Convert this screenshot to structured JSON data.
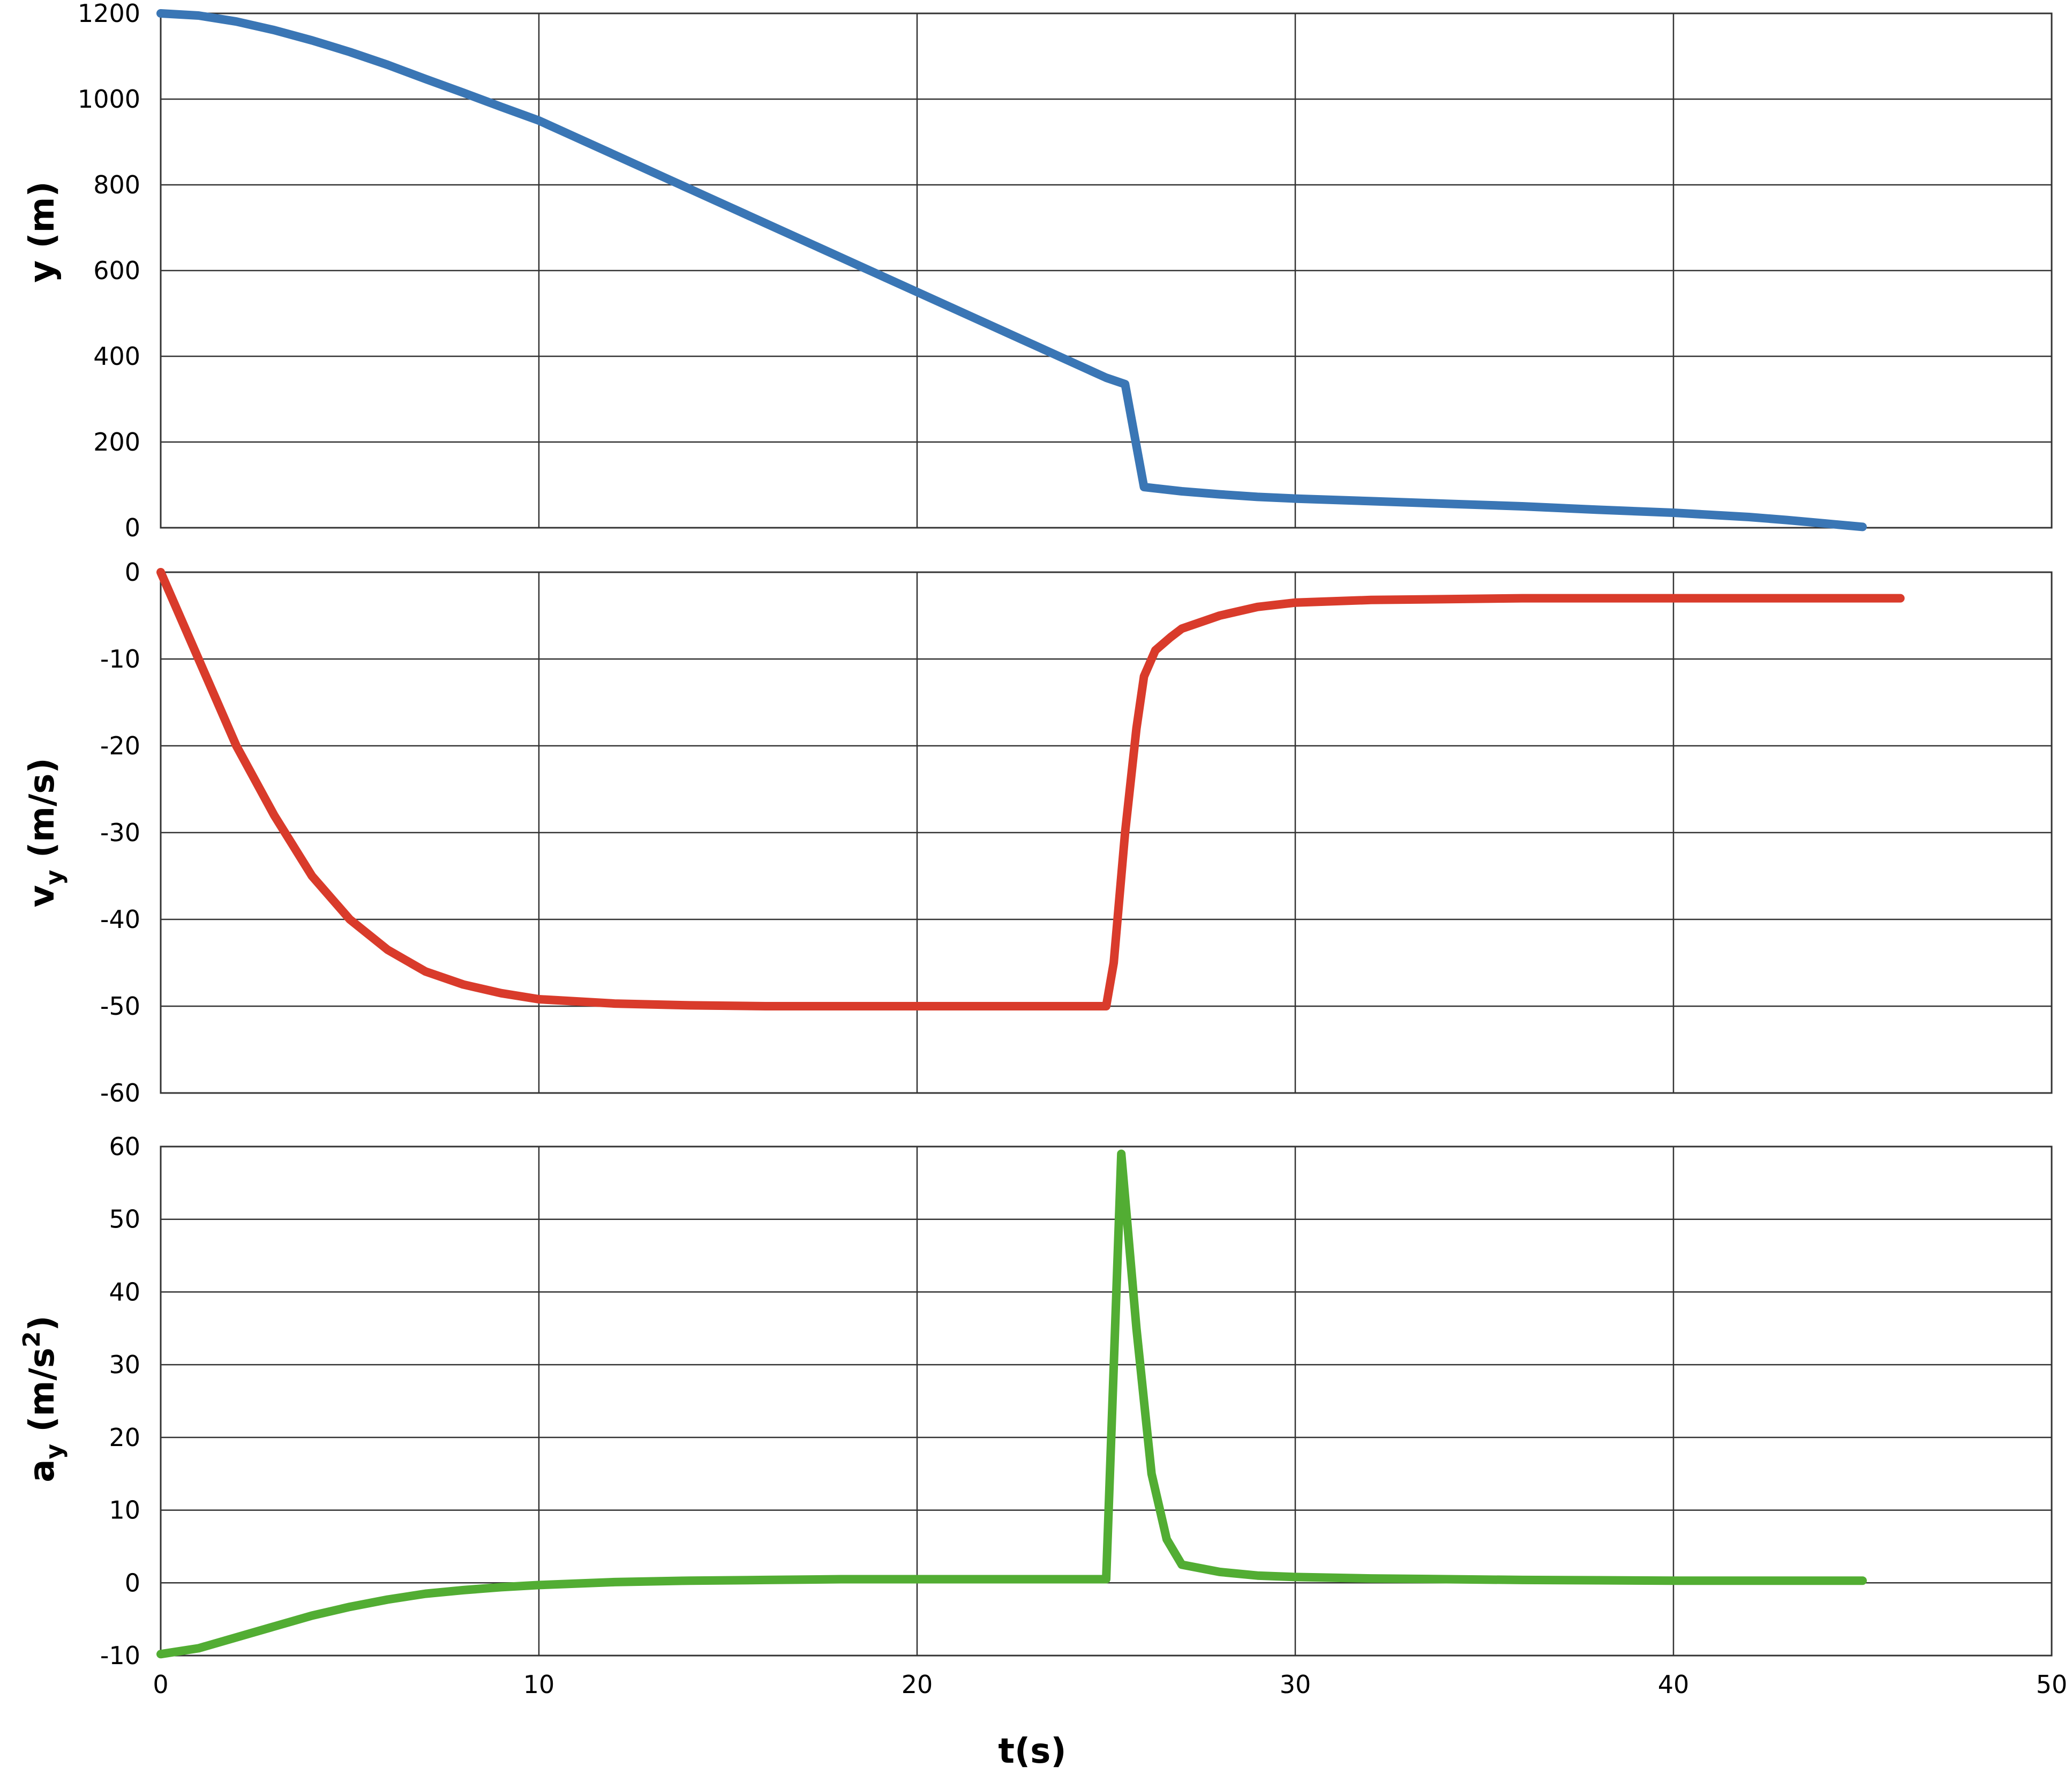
{
  "chart_data": [
    {
      "type": "line",
      "title": "",
      "xlabel": "",
      "ylabel": "y (m)",
      "xlim": [
        0,
        50
      ],
      "ylim": [
        0,
        1200
      ],
      "xticks": [
        0,
        10,
        20,
        30,
        40,
        50
      ],
      "yticks": [
        0,
        200,
        400,
        600,
        800,
        1000,
        1200
      ],
      "ytick_labels": [
        "0",
        "200",
        "400",
        "600",
        "800",
        "1000",
        "1200"
      ],
      "grid": true,
      "color": "#3a76b5",
      "series": [
        {
          "x": [
            0,
            1,
            2,
            3,
            4,
            5,
            6,
            7,
            8,
            9,
            10,
            11,
            12,
            13,
            14,
            15,
            16,
            17,
            18,
            19,
            20,
            21,
            22,
            23,
            24,
            25,
            25.5,
            26,
            27,
            28,
            29,
            30,
            32,
            34,
            36,
            38,
            40,
            42,
            43,
            44,
            45
          ],
          "y": [
            1200,
            1195,
            1181,
            1161,
            1137,
            1110,
            1080,
            1047,
            1015,
            982,
            950,
            910,
            870,
            830,
            790,
            750,
            710,
            670,
            630,
            590,
            550,
            510,
            470,
            430,
            390,
            350,
            335,
            95,
            85,
            78,
            72,
            68,
            62,
            56,
            50,
            42,
            35,
            25,
            18,
            10,
            2
          ]
        }
      ]
    },
    {
      "type": "line",
      "title": "",
      "xlabel": "",
      "ylabel": "v_y (m/s)",
      "xlim": [
        0,
        50
      ],
      "ylim": [
        -60,
        0
      ],
      "xticks": [
        0,
        10,
        20,
        30,
        40,
        50
      ],
      "yticks": [
        -60,
        -50,
        -40,
        -30,
        -20,
        -10,
        0
      ],
      "ytick_labels": [
        "-60",
        "-50",
        "-40",
        "-30",
        "-20",
        "-10",
        "0"
      ],
      "grid": true,
      "color": "#d93b2b",
      "series": [
        {
          "x": [
            0,
            1,
            2,
            3,
            4,
            5,
            6,
            7,
            8,
            9,
            10,
            12,
            14,
            16,
            18,
            20,
            22,
            24,
            25,
            25.2,
            25.5,
            25.8,
            26,
            26.3,
            26.7,
            27,
            28,
            29,
            30,
            32,
            34,
            36,
            38,
            40,
            42,
            44,
            46
          ],
          "y": [
            0,
            -10,
            -20,
            -28,
            -35,
            -40,
            -43.5,
            -46,
            -47.5,
            -48.5,
            -49.2,
            -49.7,
            -49.9,
            -50,
            -50,
            -50,
            -50,
            -50,
            -50,
            -45,
            -30,
            -18,
            -12,
            -9,
            -7.5,
            -6.5,
            -5,
            -4,
            -3.5,
            -3.2,
            -3.1,
            -3,
            -3,
            -3,
            -3,
            -3,
            -3
          ]
        }
      ]
    },
    {
      "type": "line",
      "title": "",
      "xlabel": "t(s)",
      "ylabel": "a_y (m/s^2)",
      "xlim": [
        0,
        50
      ],
      "ylim": [
        -10,
        60
      ],
      "xticks": [
        0,
        10,
        20,
        30,
        40,
        50
      ],
      "xtick_labels": [
        "0",
        "10",
        "20",
        "30",
        "40",
        "50"
      ],
      "yticks": [
        -10,
        0,
        10,
        20,
        30,
        40,
        50,
        60
      ],
      "ytick_labels": [
        "-10",
        "0",
        "10",
        "20",
        "30",
        "40",
        "50",
        "60"
      ],
      "grid": true,
      "color": "#52ad33",
      "series": [
        {
          "x": [
            0,
            1,
            2,
            3,
            4,
            5,
            6,
            7,
            8,
            9,
            10,
            12,
            14,
            16,
            18,
            20,
            22,
            24,
            25,
            25.4,
            25.8,
            26.2,
            26.6,
            27,
            28,
            29,
            30,
            32,
            34,
            36,
            38,
            40,
            42,
            44,
            45
          ],
          "y": [
            -9.8,
            -9,
            -7.5,
            -6,
            -4.5,
            -3.3,
            -2.3,
            -1.5,
            -1,
            -0.6,
            -0.3,
            0.1,
            0.3,
            0.4,
            0.5,
            0.5,
            0.5,
            0.5,
            0.5,
            59,
            35,
            15,
            6,
            2.5,
            1.5,
            1,
            0.8,
            0.6,
            0.5,
            0.4,
            0.35,
            0.3,
            0.3,
            0.3,
            0.3
          ]
        }
      ]
    }
  ]
}
